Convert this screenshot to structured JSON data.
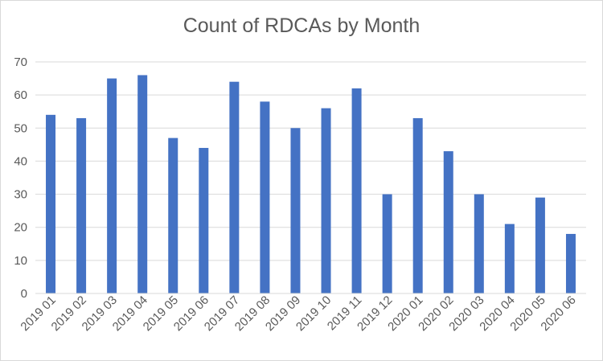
{
  "chart_data": {
    "type": "bar",
    "title": "Count of RDCAs by Month",
    "xlabel": "",
    "ylabel": "",
    "ylim": [
      0,
      70
    ],
    "yticks": [
      0,
      10,
      20,
      30,
      40,
      50,
      60,
      70
    ],
    "grid": true,
    "legend": "none",
    "bar_color": "#4472c4",
    "categories": [
      "2019 01",
      "2019 02",
      "2019 03",
      "2019 04",
      "2019 05",
      "2019 06",
      "2019 07",
      "2019 08",
      "2019 09",
      "2019 10",
      "2019 11",
      "2019 12",
      "2020 01",
      "2020 02",
      "2020 03",
      "2020 04",
      "2020 05",
      "2020 06"
    ],
    "values": [
      54,
      53,
      65,
      66,
      47,
      44,
      64,
      58,
      50,
      56,
      62,
      30,
      53,
      43,
      30,
      21,
      29,
      18
    ]
  }
}
